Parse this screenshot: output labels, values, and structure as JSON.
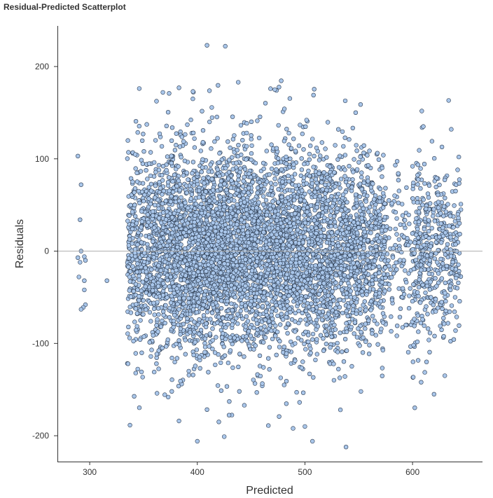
{
  "chart_data": {
    "type": "scatter",
    "title": "Residual-Predicted Scatterplot",
    "xlabel": "Predicted",
    "ylabel": "Residuals",
    "xlim": [
      270,
      665
    ],
    "ylim": [
      -228,
      244
    ],
    "xticks": [
      300,
      400,
      500,
      600
    ],
    "yticks": [
      -200,
      -100,
      0,
      100,
      200
    ],
    "reference_line_y": 0,
    "grid": false,
    "point_color": "#a9c6ea",
    "point_edge_color": "#2b3a4f",
    "sample_points": [
      {
        "x": 289,
        "y": 103
      },
      {
        "x": 292,
        "y": 72
      },
      {
        "x": 291,
        "y": 34
      },
      {
        "x": 292,
        "y": 0
      },
      {
        "x": 289,
        "y": -7
      },
      {
        "x": 291,
        "y": -12
      },
      {
        "x": 295,
        "y": -6
      },
      {
        "x": 296,
        "y": -10
      },
      {
        "x": 290,
        "y": -28
      },
      {
        "x": 295,
        "y": -32
      },
      {
        "x": 295,
        "y": -42
      },
      {
        "x": 296,
        "y": -58
      },
      {
        "x": 294,
        "y": -61
      },
      {
        "x": 292,
        "y": -63
      },
      {
        "x": 316,
        "y": -32
      },
      {
        "x": 409,
        "y": 223
      },
      {
        "x": 426,
        "y": 222
      },
      {
        "x": 438,
        "y": 183
      },
      {
        "x": 468,
        "y": 176
      },
      {
        "x": 472,
        "y": 175
      },
      {
        "x": 508,
        "y": 169
      },
      {
        "x": 368,
        "y": 172
      },
      {
        "x": 383,
        "y": 177
      },
      {
        "x": 396,
        "y": 173
      },
      {
        "x": 610,
        "y": 135
      },
      {
        "x": 636,
        "y": 132
      },
      {
        "x": 643,
        "y": 102
      },
      {
        "x": 400,
        "y": -206
      },
      {
        "x": 425,
        "y": -201
      },
      {
        "x": 507,
        "y": -206
      },
      {
        "x": 466,
        "y": -189
      },
      {
        "x": 489,
        "y": -192
      },
      {
        "x": 500,
        "y": -190
      },
      {
        "x": 383,
        "y": -184
      },
      {
        "x": 420,
        "y": -185
      },
      {
        "x": 613,
        "y": -120
      },
      {
        "x": 620,
        "y": -155
      },
      {
        "x": 630,
        "y": -135
      },
      {
        "x": 608,
        "y": -142
      }
    ],
    "bulk_distribution": {
      "x_range": [
        335,
        645
      ],
      "x_peak": 410,
      "y_center": 0,
      "y_spread": 55,
      "approx_count": 6000
    }
  }
}
